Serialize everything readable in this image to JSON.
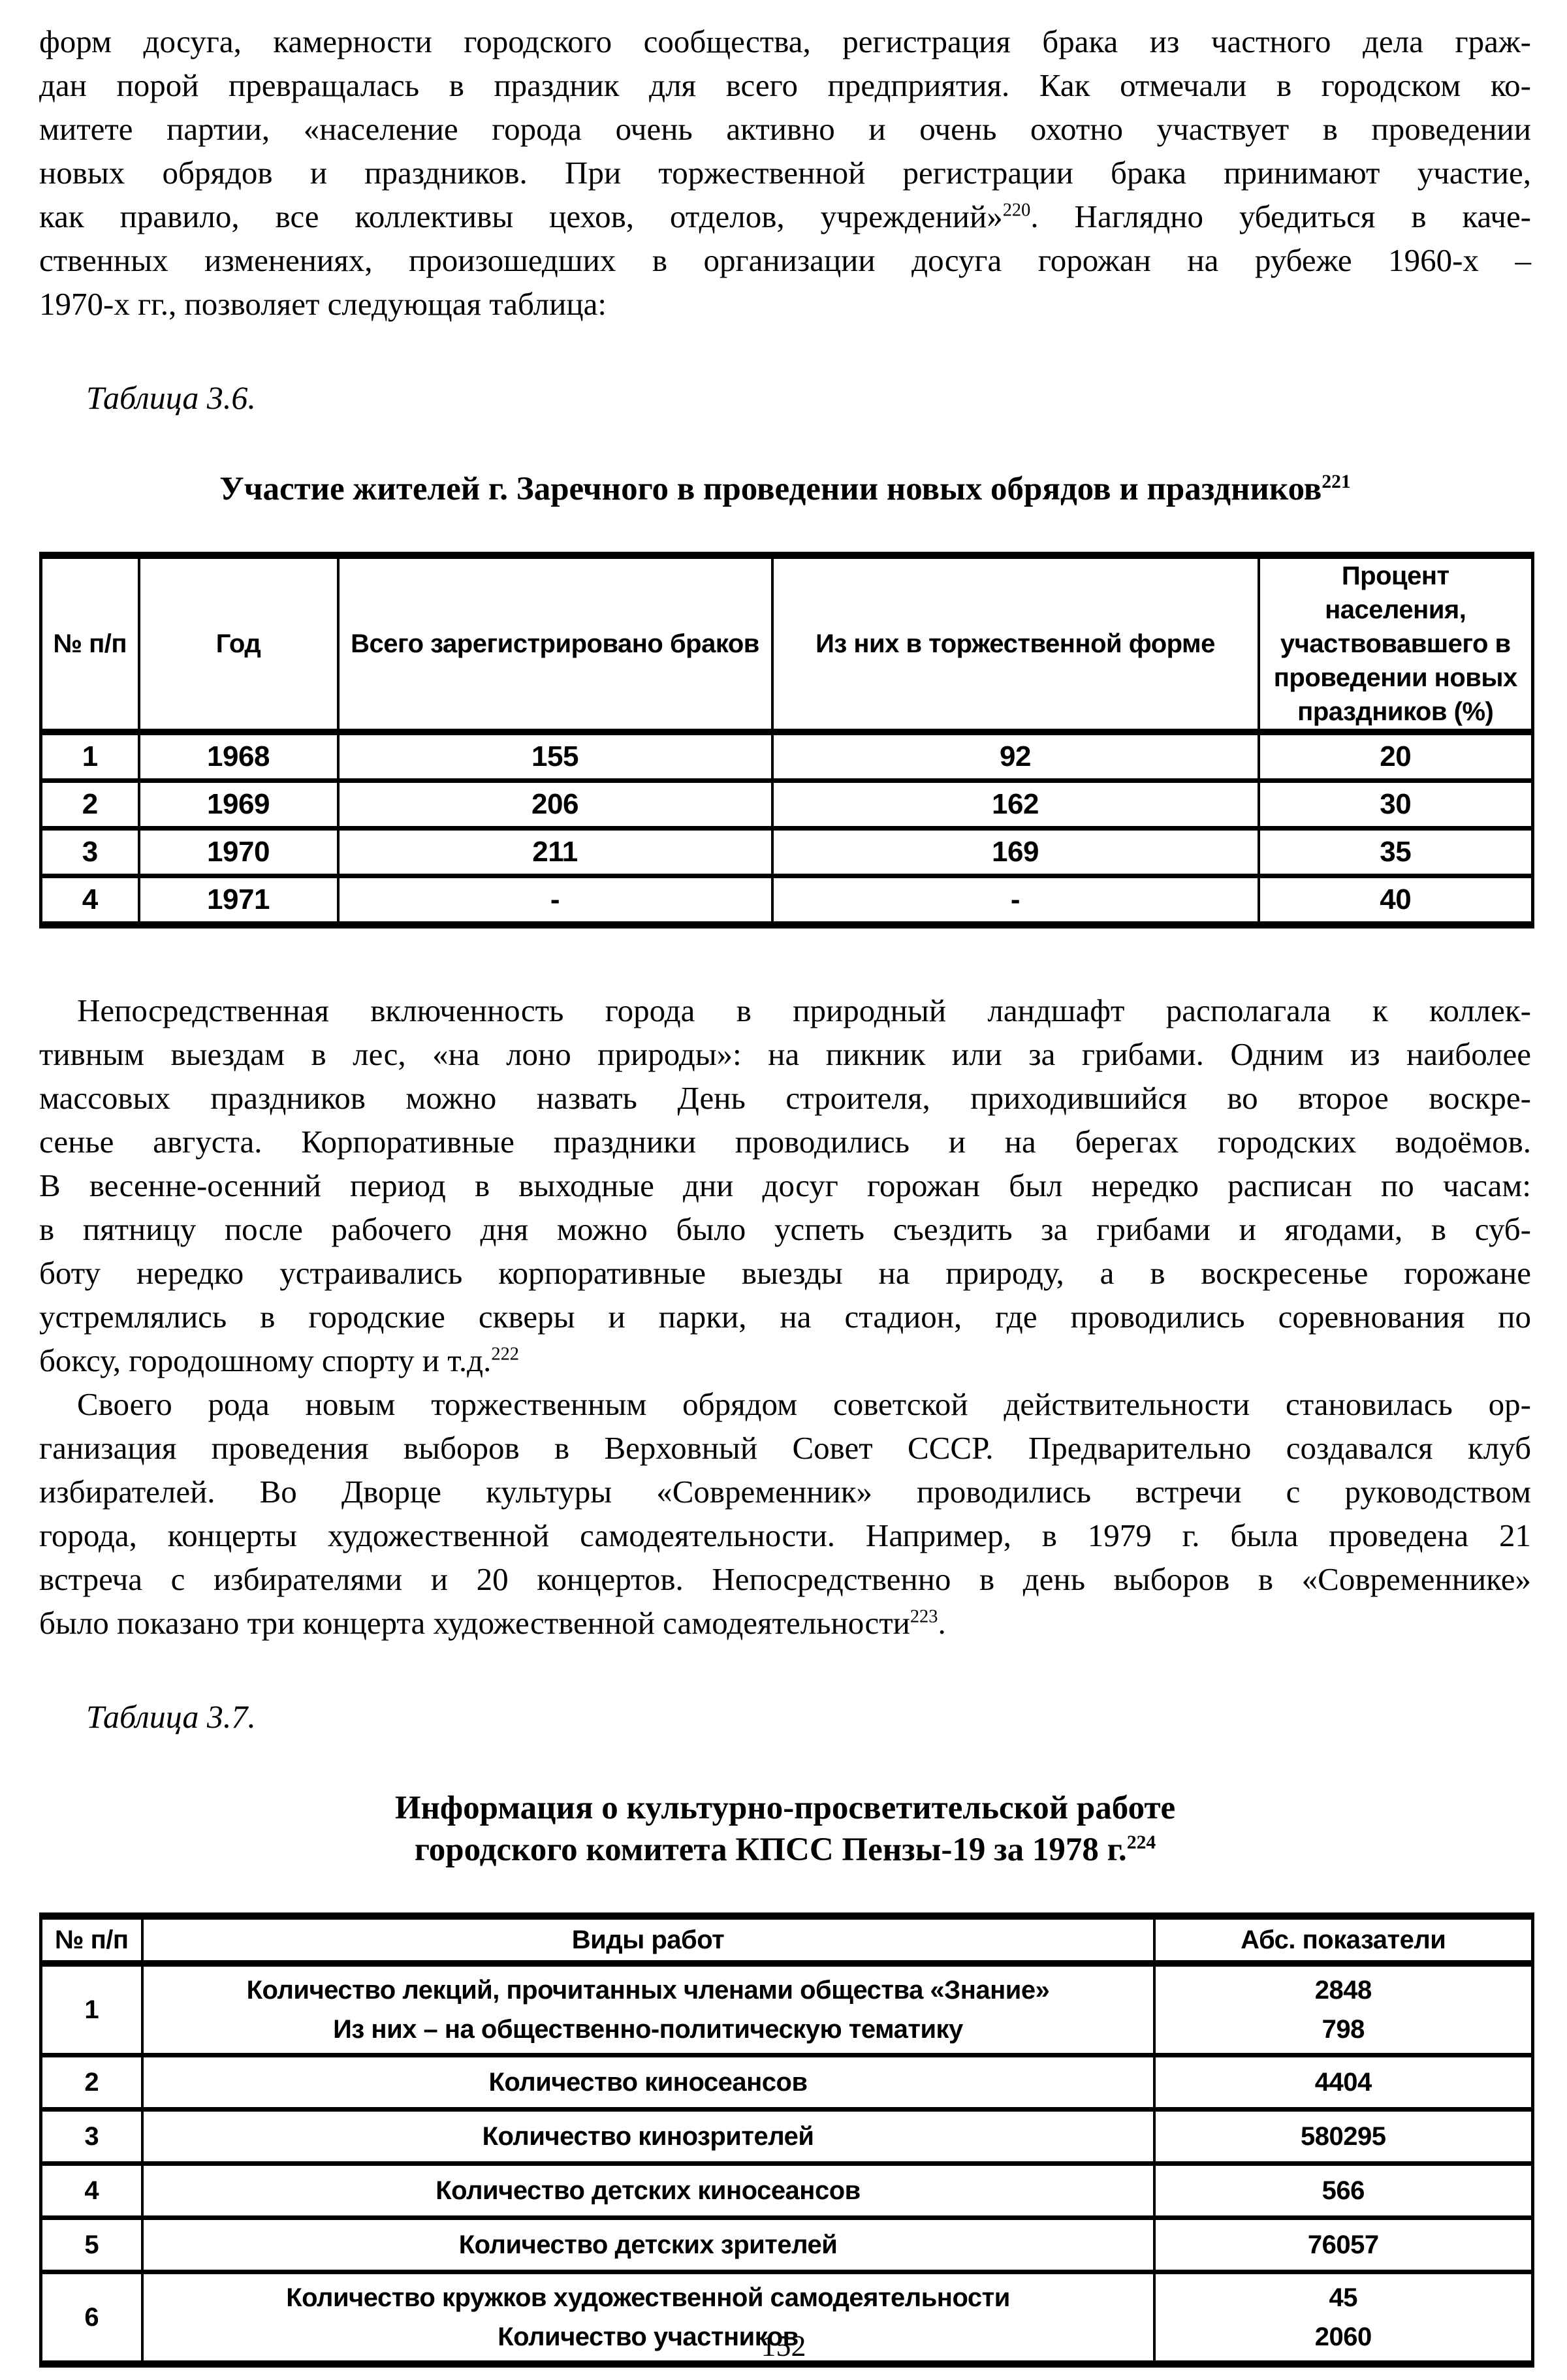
{
  "page_number": "152",
  "paragraphs": {
    "p1": {
      "lines": [
        "форм досуга, камерности городского сообщества, регистрация брака из частного дела граж-",
        "дан порой превращалась в праздник для всего предприятия. Как отмечали в городском ко-",
        "митете партии, «население города очень активно и очень охотно участвует в проведении",
        "новых обрядов и праздников. При торжественной регистрации брака принимают участие,",
        "как правило, все коллективы цехов, отделов, учреждений»{^220}. Наглядно убедиться в каче-",
        "ственных изменениях, произошедших в организации досуга горожан на рубеже 1960-х –",
        "1970-х гг., позволяет следующая таблица:"
      ]
    },
    "p2": {
      "lines": [
        "Непосредственная включенность города в природный ландшафт располагала к коллек-",
        "тивным выездам в лес, «на лоно природы»: на пикник или за грибами. Одним из наиболее",
        "массовых праздников можно назвать День строителя, приходившийся во второе воскре-",
        "сенье августа. Корпоративные праздники проводились и на берегах городских водоёмов.",
        "В весенне-осенний период в выходные дни досуг горожан был нередко расписан по часам:",
        "в пятницу после рабочего дня можно было успеть съездить за грибами и ягодами, в суб-",
        "боту нередко устраивались корпоративные выезды на природу, а в воскресенье горожане",
        "устремлялись в городские скверы и парки, на стадион, где проводились соревнования по",
        "боксу, городошному спорту и т.д.{^222}"
      ]
    },
    "p3": {
      "lines": [
        "Своего рода новым торжественным обрядом советской действительности становилась ор-",
        "ганизация проведения выборов в Верховный Совет СССР. Предварительно создавался клуб",
        "избирателей. Во Дворце культуры «Современник» проводились встречи с руководством",
        "города, концерты художественной самодеятельности. Например, в 1979 г. была проведена 21",
        "встреча с избирателями и 20 концертов. Непосредственно в день выборов в «Современнике»",
        "было показано три концерта художественной самодеятельности{^223}."
      ]
    }
  },
  "table36": {
    "label": "Таблица 3.6.",
    "title": "Участие жителей г. Заречного в проведении новых обрядов и праздников{^221}",
    "headers": [
      "№ п/п",
      "Год",
      "Всего зарегистрировано браков",
      "Из них в торжественной форме",
      "Процент населения, участвовавшего в проведении новых праздников (%)"
    ],
    "rows": [
      [
        "1",
        "1968",
        "155",
        "92",
        "20"
      ],
      [
        "2",
        "1969",
        "206",
        "162",
        "30"
      ],
      [
        "3",
        "1970",
        "211",
        "169",
        "35"
      ],
      [
        "4",
        "1971",
        "-",
        "-",
        "40"
      ]
    ]
  },
  "table37": {
    "label": "Таблица 3.7.",
    "title_line1": "Информация о культурно-просветительской работе",
    "title_line2": "городского комитета КПСС Пензы-19 за 1978 г.{^224}",
    "headers": [
      "№ п/п",
      "Виды работ",
      "Абс. показатели"
    ],
    "rows": [
      {
        "num": "1",
        "works": [
          "Количество лекций, прочитанных членами общества «Знание»",
          "Из них – на общественно-политическую тематику"
        ],
        "values": [
          "2848",
          "798"
        ]
      },
      {
        "num": "2",
        "works": [
          "Количество киносеансов"
        ],
        "values": [
          "4404"
        ]
      },
      {
        "num": "3",
        "works": [
          "Количество кинозрителей"
        ],
        "values": [
          "580295"
        ]
      },
      {
        "num": "4",
        "works": [
          "Количество детских киносеансов"
        ],
        "values": [
          "566"
        ]
      },
      {
        "num": "5",
        "works": [
          "Количество детских зрителей"
        ],
        "values": [
          "76057"
        ]
      },
      {
        "num": "6",
        "works": [
          "Количество кружков художественной самодеятельности",
          "Количество участников"
        ],
        "values": [
          "45",
          "2060"
        ]
      }
    ]
  }
}
